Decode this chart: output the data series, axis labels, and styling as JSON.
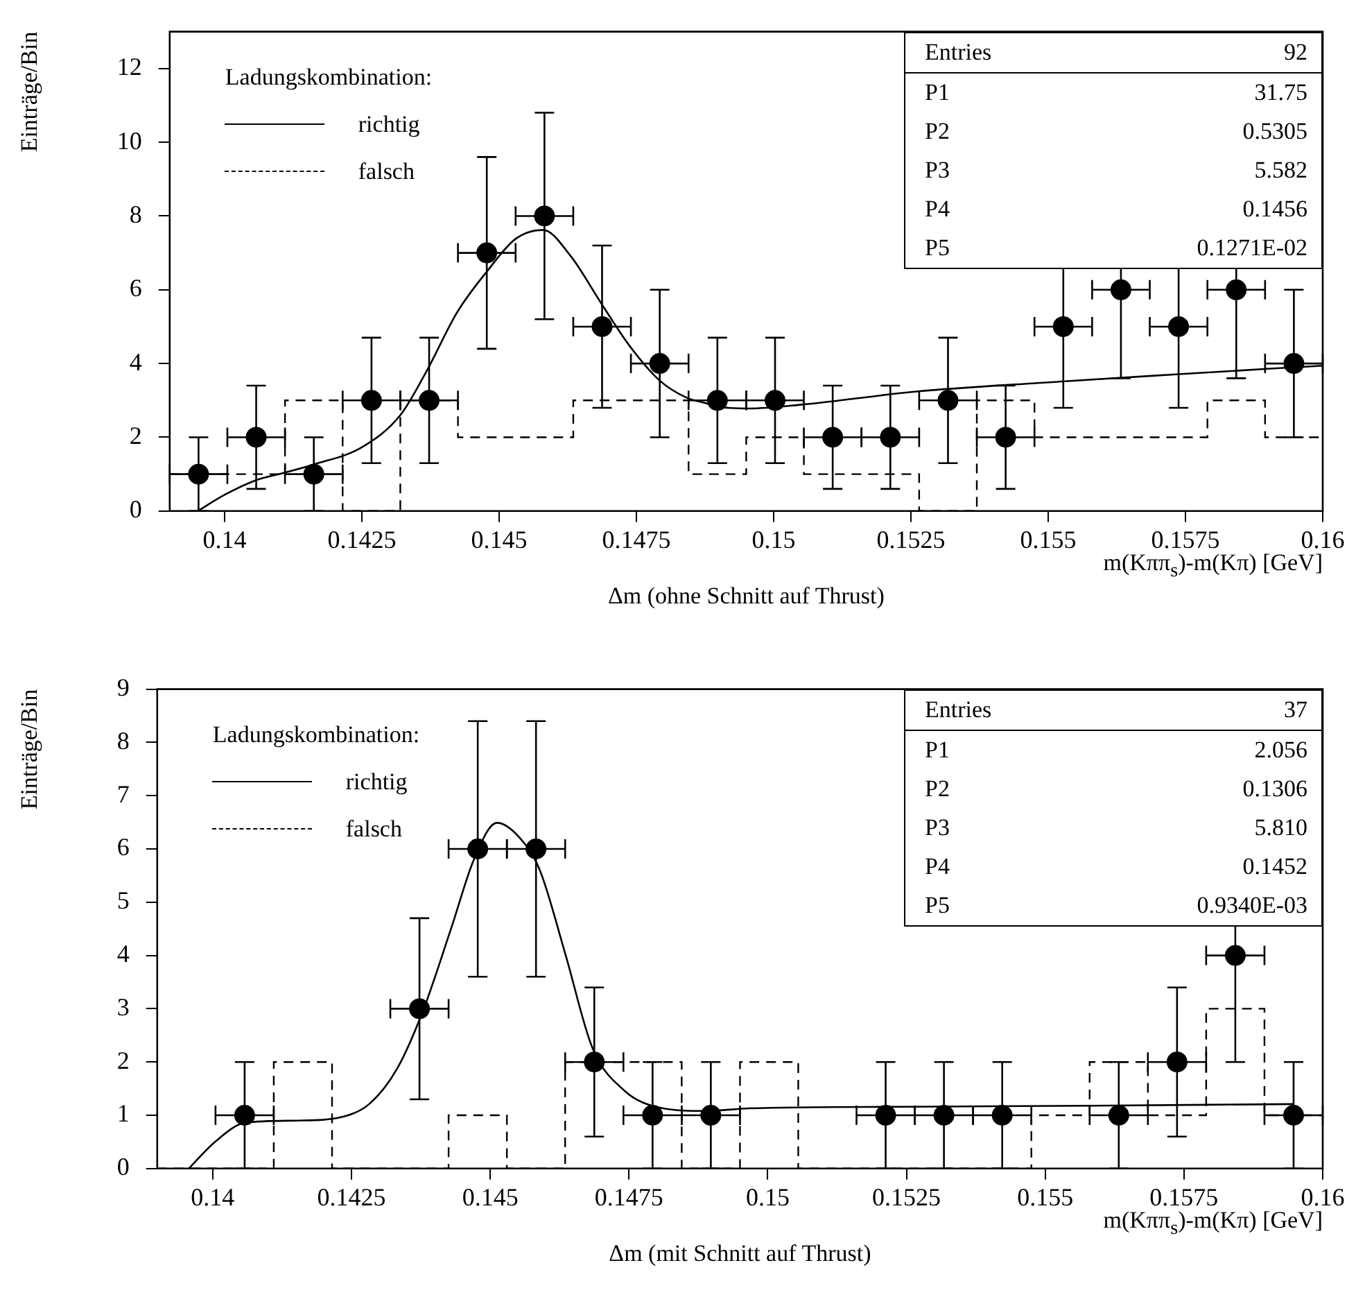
{
  "chart_data": [
    {
      "type": "scatter",
      "xlabel": "m(Kππ$_{s}$)-m(Kπ)  [GeV]",
      "ylabel": "Einträge/Bin",
      "legend_title": "Ladungskombination:",
      "legend": "top left",
      "grid": false,
      "annotations": [
        "Δm (ohne Schnitt auf Thrust)",
        "Entries 92",
        "P1 31.75",
        "P2 0.5305",
        "P3 5.582",
        "P4 0.1456",
        "P5 0.1271E-02"
      ],
      "xlim": [
        0.139,
        0.16
      ],
      "xticks": [
        0.14,
        0.1425,
        0.145,
        0.1475,
        0.15,
        0.1525,
        0.155,
        0.1575,
        0.16
      ],
      "ylim": [
        0,
        13
      ],
      "yticks": [
        0,
        2,
        4,
        6,
        8,
        10,
        12
      ],
      "series": [
        {
          "type": "scatter",
          "color": "#000000",
          "marker": "circle",
          "x": [
            0.139525,
            0.140575,
            0.141625,
            0.142675,
            0.143725,
            0.144775,
            0.145825,
            0.146875,
            0.147925,
            0.148975,
            0.150025,
            0.151075,
            0.152125,
            0.153175,
            0.154225,
            0.155275,
            0.156325,
            0.157375,
            0.158425,
            0.159475
          ],
          "values": [
            1,
            2,
            1,
            3,
            3,
            7,
            8,
            5,
            4,
            3,
            3,
            2,
            2,
            3,
            2,
            5,
            6,
            5,
            6,
            4
          ],
          "errors": [
            1,
            1.4,
            1,
            1.7,
            1.7,
            2.6,
            2.8,
            2.2,
            2,
            1.7,
            1.7,
            1.4,
            1.4,
            1.7,
            1.4,
            2.2,
            2.4,
            2.2,
            2.4,
            2
          ],
          "xerrors": [
            0.000525,
            0.000525,
            0.000525,
            0.000525,
            0.000525,
            0.000525,
            0.000525,
            0.000525,
            0.000525,
            0.000525,
            0.000525,
            0.000525,
            0.000525,
            0.000525,
            0.000525,
            0.000525,
            0.000525,
            0.000525,
            0.000525,
            0.000525
          ]
        },
        {
          "type": "line",
          "name": "richtig",
          "color": "#000000",
          "marker": "none",
          "line_style": "solid",
          "x": [
            0.13951,
            0.14,
            0.14056,
            0.14107,
            0.14162,
            0.1425,
            0.1432,
            0.14367,
            0.14424,
            0.14478,
            0.1453,
            0.1458,
            0.1463,
            0.14686,
            0.14738,
            0.14793,
            0.14842,
            0.14875,
            0.14897,
            0.14955,
            0.15054,
            0.1526,
            0.15491,
            0.15738,
            0.15904,
            0.16
          ],
          "values": [
            0,
            0.44,
            0.83,
            1.03,
            1.26,
            1.73,
            2.6,
            3.77,
            5.4,
            6.5,
            7.38,
            7.62,
            6.92,
            5.63,
            4.47,
            3.53,
            3.07,
            2.93,
            2.83,
            2.78,
            2.89,
            3.24,
            3.48,
            3.71,
            3.86,
            3.94
          ]
        },
        {
          "type": "histogram",
          "name": "falsch",
          "color": "#000000",
          "line_style": "dashed",
          "bins": [
            0.139,
            0.14005,
            0.1411,
            0.14215,
            0.1432,
            0.14425,
            0.1453,
            0.14635,
            0.1474,
            0.14845,
            0.1495,
            0.15055,
            0.1516,
            0.15265,
            0.1537,
            0.15475,
            0.1558,
            0.15685,
            0.1579,
            0.15895,
            0.16
          ],
          "values": [
            1,
            1,
            3,
            0,
            3,
            2,
            2,
            3,
            3,
            1,
            2,
            1,
            1,
            0,
            3,
            2,
            2,
            2,
            3,
            2
          ]
        }
      ]
    },
    {
      "type": "scatter",
      "xlabel": "m(Kππ$_{s}$)-m(Kπ)  [GeV]",
      "ylabel": "Einträge/Bin",
      "legend_title": "Ladungskombination:",
      "legend": "top left",
      "grid": false,
      "annotations": [
        "Δm (mit Schnitt auf Thrust)",
        "Entries 37",
        "P1 2.056",
        "P2 0.1306",
        "P3 5.810",
        "P4 0.1452",
        "P5 0.9340E-03"
      ],
      "xlim": [
        0.139,
        0.16
      ],
      "xticks": [
        0.14,
        0.1425,
        0.145,
        0.1475,
        0.15,
        0.1525,
        0.155,
        0.1575,
        0.16
      ],
      "ylim": [
        0,
        9
      ],
      "yticks": [
        0,
        1,
        2,
        3,
        4,
        5,
        6,
        7,
        8,
        9
      ],
      "series": [
        {
          "type": "scatter",
          "color": "#000000",
          "marker": "circle",
          "x": [
            0.140575,
            0.143725,
            0.144775,
            0.145825,
            0.146875,
            0.147925,
            0.148975,
            0.152125,
            0.153175,
            0.154225,
            0.156325,
            0.157375,
            0.158425,
            0.159475
          ],
          "values": [
            1,
            3,
            6,
            6,
            2,
            1,
            1,
            1,
            1,
            1,
            1,
            2,
            4,
            1
          ],
          "errors": [
            1,
            1.7,
            2.4,
            2.4,
            1.4,
            1,
            1,
            1,
            1,
            1,
            1,
            1.4,
            2,
            1
          ],
          "xerrors": [
            0.000525,
            0.000525,
            0.000525,
            0.000525,
            0.000525,
            0.000525,
            0.000525,
            0.000525,
            0.000525,
            0.000525,
            0.000525,
            0.000525,
            0.000525,
            0.000525
          ]
        },
        {
          "type": "line",
          "name": "richtig",
          "color": "#000000",
          "marker": "none",
          "line_style": "solid",
          "x": [
            0.13957,
            0.14004,
            0.14059,
            0.14152,
            0.14234,
            0.14283,
            0.14332,
            0.14377,
            0.1443,
            0.14471,
            0.14512,
            0.14553,
            0.14589,
            0.14635,
            0.14684,
            0.14742,
            0.14807,
            0.14889,
            0.14967,
            0.15255,
            0.15584,
            0.15947
          ],
          "values": [
            0,
            0.5,
            0.86,
            0.9,
            0.97,
            1.22,
            1.87,
            2.91,
            4.52,
            5.81,
            6.49,
            6.21,
            5.61,
            4.04,
            2.27,
            1.46,
            1.14,
            1.08,
            1.13,
            1.16,
            1.18,
            1.21
          ]
        },
        {
          "type": "histogram",
          "name": "falsch",
          "color": "#000000",
          "line_style": "dashed",
          "bins": [
            0.139,
            0.14005,
            0.1411,
            0.14215,
            0.1432,
            0.14425,
            0.1453,
            0.14635,
            0.1474,
            0.14845,
            0.1495,
            0.15055,
            0.1516,
            0.15265,
            0.1537,
            0.15475,
            0.1558,
            0.15685,
            0.1579,
            0.15895,
            0.16
          ],
          "values": [
            0,
            0,
            2,
            0,
            0,
            1,
            0,
            2,
            2,
            0,
            2,
            0,
            0,
            0,
            0,
            1,
            2,
            1,
            3,
            1
          ]
        }
      ]
    }
  ]
}
